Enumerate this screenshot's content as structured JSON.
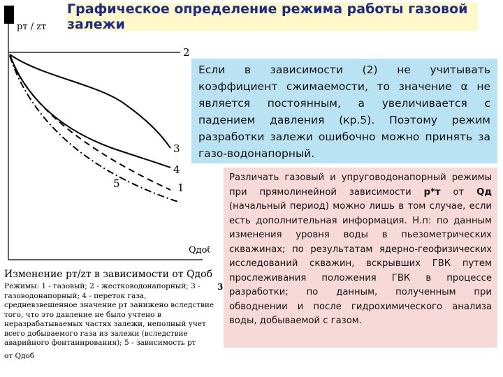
{
  "slide": {
    "title": "Графическое определение режима работы газовой залежи"
  },
  "chart_data": {
    "type": "line",
    "y_axis_label": "pт / zт",
    "x_axis_label": "Qдоб",
    "curve_labels": [
      "2",
      "3",
      "4",
      "5",
      "1"
    ]
  },
  "caption": {
    "title": "Изменение pт/zт в зависимости от Qдоб",
    "body": "Режимы: 1 - газовый; 2 - жестководонапорный; 3 - газоводонапорный; 4 - переток газа, средневзвешенное значение pт занижено вследствие того, что это давление не было учтено в неразрабатываемых частях залежи, неполный учет всего добываемого газа из залежи (вследствие аварийного фонтанирования); 5 - зависимость pт",
    "tail": "от Qдоб",
    "stray_digit": "3"
  },
  "blue_box": {
    "text": "Если в зависимости (2) не учитывать коэффициент сжимаемости, то значение α не является постоянным, а увеличивается с падением давления (кр.5). Поэтому режим разработки залежи ошибочно можно принять за газо-водонапорный."
  },
  "pink_box": {
    "text_before": "Различать газовый и упруговодонапорный режимы при прямолинейной зависимости ",
    "p_symbol": "р*т",
    "text_middle": " от ",
    "q_symbol": "Qд",
    "text_after": " (начальный период) можно лишь в том случае, если есть дополнительная информация. Н.п: по данным изменения уровня воды в пьезометрических скважинах; по результатам ядерно-геофизических исследований скважин, вскрывших ГВК путем прослеживания положения ГВК в процессе разработки; по данным, полученным при обводнении и после гидрохимического анализа воды, добываемой с газом."
  }
}
